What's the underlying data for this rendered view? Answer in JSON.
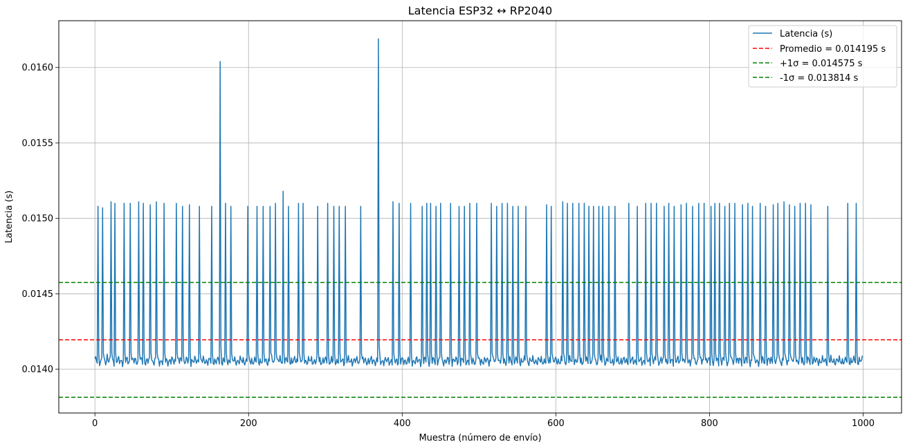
{
  "chart_data": {
    "type": "line",
    "title": "Latencia ESP32 ↔ RP2040",
    "xlabel": "Muestra (número de envío)",
    "ylabel": "Latencia (s)",
    "xlim": [
      -47,
      1050
    ],
    "ylim": [
      0.01371,
      0.01631
    ],
    "x_ticks": [
      0,
      200,
      400,
      600,
      800,
      1000
    ],
    "x_tick_labels": [
      "0",
      "200",
      "400",
      "600",
      "800",
      "1000"
    ],
    "y_ticks": [
      0.014,
      0.0145,
      0.015,
      0.0155,
      0.016
    ],
    "y_tick_labels": [
      "0.0140",
      "0.0145",
      "0.0150",
      "0.0155",
      "0.0160"
    ],
    "grid": true,
    "legend_position": "top-right",
    "series": [
      {
        "name": "Latencia (s)",
        "color": "#1f77b4",
        "style": "solid",
        "n_samples": 1000,
        "baseline_value": 0.014055,
        "baseline_amplitude": 4e-05,
        "spikes": [
          {
            "x": 4,
            "value": 0.01508
          },
          {
            "x": 10,
            "value": 0.01507
          },
          {
            "x": 16,
            "value": 0.0141
          },
          {
            "x": 21,
            "value": 0.01511
          },
          {
            "x": 26,
            "value": 0.0151
          },
          {
            "x": 38,
            "value": 0.0151
          },
          {
            "x": 46,
            "value": 0.0151
          },
          {
            "x": 57,
            "value": 0.01511
          },
          {
            "x": 63,
            "value": 0.0151
          },
          {
            "x": 72,
            "value": 0.01509
          },
          {
            "x": 80,
            "value": 0.01511
          },
          {
            "x": 90,
            "value": 0.0151
          },
          {
            "x": 106,
            "value": 0.0151
          },
          {
            "x": 114,
            "value": 0.01508
          },
          {
            "x": 123,
            "value": 0.01509
          },
          {
            "x": 136,
            "value": 0.01508
          },
          {
            "x": 152,
            "value": 0.01508
          },
          {
            "x": 163,
            "value": 0.01604
          },
          {
            "x": 170,
            "value": 0.0151
          },
          {
            "x": 177,
            "value": 0.01508
          },
          {
            "x": 199,
            "value": 0.01508
          },
          {
            "x": 211,
            "value": 0.01508
          },
          {
            "x": 219,
            "value": 0.01508
          },
          {
            "x": 228,
            "value": 0.01508
          },
          {
            "x": 235,
            "value": 0.0151
          },
          {
            "x": 245,
            "value": 0.01518
          },
          {
            "x": 252,
            "value": 0.01508
          },
          {
            "x": 265,
            "value": 0.0151
          },
          {
            "x": 271,
            "value": 0.0151
          },
          {
            "x": 290,
            "value": 0.01508
          },
          {
            "x": 303,
            "value": 0.0151
          },
          {
            "x": 311,
            "value": 0.01508
          },
          {
            "x": 318,
            "value": 0.01508
          },
          {
            "x": 326,
            "value": 0.01508
          },
          {
            "x": 346,
            "value": 0.01508
          },
          {
            "x": 369,
            "value": 0.01619
          },
          {
            "x": 388,
            "value": 0.01511
          },
          {
            "x": 396,
            "value": 0.0151
          },
          {
            "x": 411,
            "value": 0.0151
          },
          {
            "x": 426,
            "value": 0.01508
          },
          {
            "x": 432,
            "value": 0.0151
          },
          {
            "x": 437,
            "value": 0.0151
          },
          {
            "x": 444,
            "value": 0.01508
          },
          {
            "x": 450,
            "value": 0.0151
          },
          {
            "x": 463,
            "value": 0.0151
          },
          {
            "x": 474,
            "value": 0.01508
          },
          {
            "x": 481,
            "value": 0.01508
          },
          {
            "x": 488,
            "value": 0.0151
          },
          {
            "x": 497,
            "value": 0.0151
          },
          {
            "x": 516,
            "value": 0.0151
          },
          {
            "x": 523,
            "value": 0.01508
          },
          {
            "x": 530,
            "value": 0.0151
          },
          {
            "x": 537,
            "value": 0.0151
          },
          {
            "x": 544,
            "value": 0.01508
          },
          {
            "x": 551,
            "value": 0.01508
          },
          {
            "x": 561,
            "value": 0.01508
          },
          {
            "x": 588,
            "value": 0.01509
          },
          {
            "x": 594,
            "value": 0.01508
          },
          {
            "x": 609,
            "value": 0.01511
          },
          {
            "x": 615,
            "value": 0.0151
          },
          {
            "x": 622,
            "value": 0.0151
          },
          {
            "x": 630,
            "value": 0.0151
          },
          {
            "x": 637,
            "value": 0.0151
          },
          {
            "x": 643,
            "value": 0.01508
          },
          {
            "x": 649,
            "value": 0.01508
          },
          {
            "x": 656,
            "value": 0.01508
          },
          {
            "x": 661,
            "value": 0.01508
          },
          {
            "x": 669,
            "value": 0.01508
          },
          {
            "x": 677,
            "value": 0.01508
          },
          {
            "x": 695,
            "value": 0.0151
          },
          {
            "x": 706,
            "value": 0.01508
          },
          {
            "x": 717,
            "value": 0.0151
          },
          {
            "x": 724,
            "value": 0.0151
          },
          {
            "x": 731,
            "value": 0.0151
          },
          {
            "x": 741,
            "value": 0.01508
          },
          {
            "x": 747,
            "value": 0.0151
          },
          {
            "x": 754,
            "value": 0.01508
          },
          {
            "x": 763,
            "value": 0.01509
          },
          {
            "x": 770,
            "value": 0.0151
          },
          {
            "x": 778,
            "value": 0.01508
          },
          {
            "x": 786,
            "value": 0.0151
          },
          {
            "x": 793,
            "value": 0.0151
          },
          {
            "x": 802,
            "value": 0.01508
          },
          {
            "x": 807,
            "value": 0.0151
          },
          {
            "x": 813,
            "value": 0.0151
          },
          {
            "x": 820,
            "value": 0.01508
          },
          {
            "x": 826,
            "value": 0.0151
          },
          {
            "x": 833,
            "value": 0.0151
          },
          {
            "x": 843,
            "value": 0.01509
          },
          {
            "x": 850,
            "value": 0.0151
          },
          {
            "x": 856,
            "value": 0.01508
          },
          {
            "x": 866,
            "value": 0.0151
          },
          {
            "x": 873,
            "value": 0.01508
          },
          {
            "x": 883,
            "value": 0.01509
          },
          {
            "x": 889,
            "value": 0.0151
          },
          {
            "x": 897,
            "value": 0.01511
          },
          {
            "x": 904,
            "value": 0.01509
          },
          {
            "x": 911,
            "value": 0.01508
          },
          {
            "x": 918,
            "value": 0.0151
          },
          {
            "x": 925,
            "value": 0.0151
          },
          {
            "x": 932,
            "value": 0.01509
          },
          {
            "x": 954,
            "value": 0.01508
          },
          {
            "x": 980,
            "value": 0.0151
          },
          {
            "x": 991,
            "value": 0.0151
          }
        ]
      },
      {
        "name": "Promedio = 0.014195 s",
        "color": "#ff0000",
        "style": "dashed",
        "value": 0.014195
      },
      {
        "name": "+1σ = 0.014575 s",
        "color": "#008000",
        "style": "dashed",
        "value": 0.014575
      },
      {
        "name": "-1σ = 0.013814 s",
        "color": "#008000",
        "style": "dashed",
        "value": 0.013814
      }
    ]
  }
}
